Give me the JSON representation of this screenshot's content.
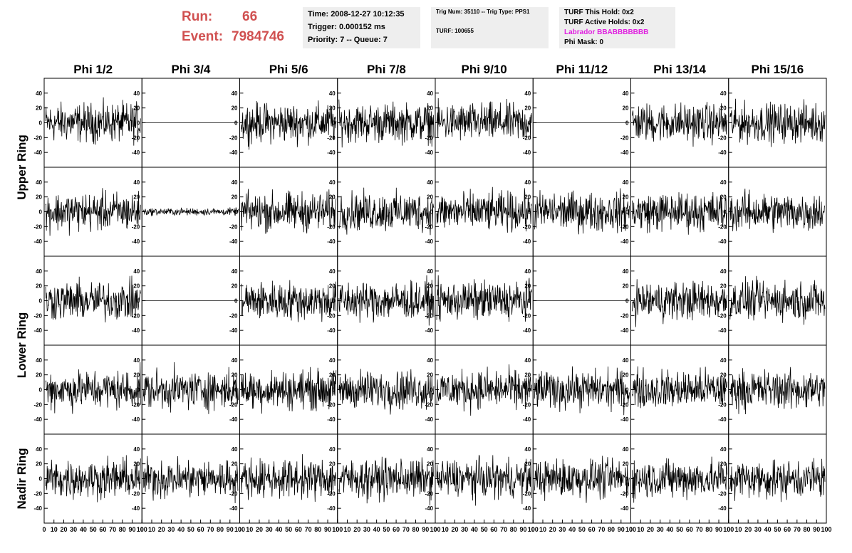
{
  "header": {
    "run_label": "Run:",
    "run": "66",
    "event_label": "Event:",
    "event": "7984746",
    "box1": [
      "Time: 2008-12-27 10:12:35",
      "Trigger: 0.000152 ms",
      "Priority: 7 -- Queue: 7"
    ],
    "box2": [
      "Trig Num: 35110 -- Trig Type: PPS1",
      "TURF: 100655"
    ],
    "box3": [
      "TURF This Hold: 0x2",
      "TURF Active Holds: 0x2",
      "Labrador BBABBBBBBB",
      "Phi Mask: 0"
    ]
  },
  "columns": [
    "Phi 1/2",
    "Phi 3/4",
    "Phi 5/6",
    "Phi 7/8",
    "Phi 9/10",
    "Phi 11/12",
    "Phi 13/14",
    "Phi 15/16"
  ],
  "ring_labels": [
    "Upper Ring",
    "Lower Ring",
    "Nadir Ring"
  ],
  "panels": {
    "ylim": [
      -60,
      60
    ],
    "yticks": [
      -40,
      -20,
      0,
      20,
      40
    ],
    "xlim": [
      0,
      100
    ],
    "xticks": [
      0,
      10,
      20,
      30,
      40,
      50,
      60,
      70,
      80,
      90,
      100
    ],
    "traces": [
      [
        "noise",
        "flat",
        "noise",
        "noise",
        "noise",
        "flat",
        "noise",
        "noise"
      ],
      [
        "noise",
        "small",
        "noise",
        "noise",
        "noise",
        "noise",
        "noise",
        "noise"
      ],
      [
        "noise",
        "flat",
        "noise",
        "noise",
        "noise",
        "flat",
        "noise",
        "noise"
      ],
      [
        "noise",
        "noise",
        "noise",
        "noise",
        "noise",
        "noise",
        "noise",
        "noise"
      ],
      [
        "noise",
        "noise",
        "noise",
        "noise",
        "noise",
        "noise",
        "noise",
        "noise"
      ]
    ]
  }
}
